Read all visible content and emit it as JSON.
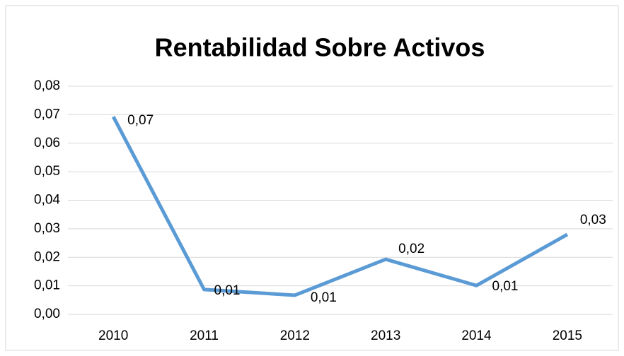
{
  "chart_data": {
    "type": "line",
    "title": "Rentabilidad Sobre Activos",
    "categories": [
      "2010",
      "2011",
      "2012",
      "2013",
      "2014",
      "2015"
    ],
    "series": [
      {
        "name": "Rentabilidad Sobre Activos",
        "color": "#5b9bd5",
        "values": [
          0.0693,
          0.0087,
          0.0067,
          0.0193,
          0.0101,
          0.028
        ],
        "value_labels": [
          "0,07",
          "0,01",
          "0,01",
          "0,02",
          "0,01",
          "0,03"
        ]
      }
    ],
    "ylim": [
      0,
      0.08
    ],
    "yticks": [
      {
        "value": 0,
        "label": "0,00"
      },
      {
        "value": 0.01,
        "label": "0,01"
      },
      {
        "value": 0.02,
        "label": "0,02"
      },
      {
        "value": 0.03,
        "label": "0,03"
      },
      {
        "value": 0.04,
        "label": "0,04"
      },
      {
        "value": 0.05,
        "label": "0,05"
      },
      {
        "value": 0.06,
        "label": "0,06"
      },
      {
        "value": 0.07,
        "label": "0,07"
      },
      {
        "value": 0.08,
        "label": "0,08"
      }
    ],
    "grid": true
  }
}
